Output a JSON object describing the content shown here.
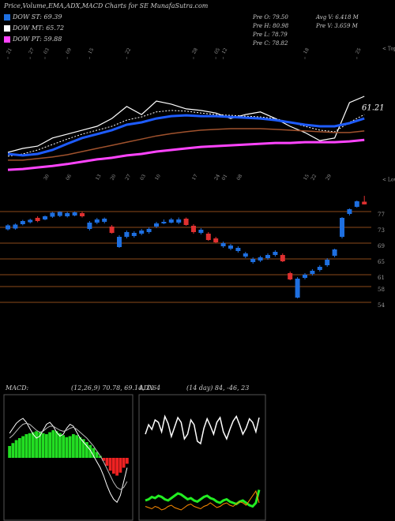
{
  "header": {
    "title": "Price,Volume,EMA,ADX,MACD Charts for SE MunafaSutra.com",
    "legend": [
      {
        "text": "DOW ST: 69.39",
        "color": "#1e6fe0"
      },
      {
        "text": "DOW MT: 65.72",
        "color": "#ffffff"
      },
      {
        "text": "DOW PT: 59.88",
        "color": "#ff44ff"
      }
    ],
    "info": [
      "Pre O: 79.50",
      "Pre H: 80.98",
      "Pre L: 78.79",
      "Pre C: 78.82",
      "Avg V: 6.418  M",
      "Pre V: 3.659 M"
    ]
  },
  "chart_data": [
    {
      "type": "line",
      "annotation": "< Tops",
      "value_label": "61.21",
      "x": [
        0,
        2,
        4,
        6,
        8,
        10,
        12,
        14,
        16,
        18,
        20,
        22,
        24,
        26,
        28,
        30,
        32,
        34,
        36,
        38,
        40,
        42,
        44,
        46,
        48
      ],
      "xlim": [
        -1,
        49
      ],
      "xticks": [
        {
          "value": 0,
          "label": "21"
        },
        {
          "value": 3,
          "label": "27"
        },
        {
          "value": 5,
          "label": "03"
        },
        {
          "value": 8,
          "label": "09"
        },
        {
          "value": 11,
          "label": "15"
        },
        {
          "value": 16,
          "label": "22"
        },
        {
          "value": 25,
          "label": "28"
        },
        {
          "value": 28,
          "label": "05"
        },
        {
          "value": 29,
          "label": "12"
        },
        {
          "value": 40,
          "label": "18"
        },
        {
          "value": 47,
          "label": "25"
        }
      ],
      "ylim": [
        40,
        90
      ],
      "series": [
        {
          "name": "Price",
          "color": "#ffffff",
          "width": 1.2,
          "dash": false,
          "values": [
            49.7,
            51.2,
            52.1,
            55.2,
            56.7,
            58.2,
            59.7,
            62.7,
            67.3,
            64.2,
            69.4,
            68.2,
            66.4,
            65.8,
            64.8,
            62.7,
            64.2,
            65.2,
            62.7,
            59.7,
            57.3,
            54.2,
            55.2,
            68.8,
            71.2
          ]
        },
        {
          "name": "EMA short",
          "color": "#ffffff",
          "width": 1,
          "dash": true,
          "values": [
            48.2,
            49.1,
            50.6,
            52.7,
            54.8,
            56.7,
            58.2,
            59.7,
            62.1,
            63.3,
            65.2,
            65.8,
            65.5,
            64.8,
            64.2,
            63.9,
            63.6,
            63.3,
            62.7,
            61.2,
            59.7,
            58.2,
            57.6,
            61.2,
            64.2
          ]
        },
        {
          "name": "EMA ST",
          "color": "#1e5cff",
          "width": 3,
          "dash": false,
          "values": [
            49.1,
            48.5,
            49.1,
            50.6,
            53,
            55.2,
            56.7,
            58.2,
            60.3,
            61.2,
            62.7,
            63.6,
            63.9,
            63.6,
            63.6,
            63.3,
            63,
            62.7,
            62.1,
            61.2,
            60.3,
            59.7,
            59.7,
            60.9,
            62.7
          ]
        },
        {
          "name": "EMA MT",
          "color": "#a0522d",
          "width": 1.5,
          "dash": false,
          "values": [
            46.7,
            46.7,
            47.3,
            47.9,
            48.8,
            50,
            51.2,
            52.4,
            53.6,
            54.8,
            56,
            56.9,
            57.6,
            58.2,
            58.5,
            58.8,
            58.8,
            58.8,
            58.5,
            58.2,
            57.9,
            57.6,
            57.3,
            57.3,
            57.9
          ]
        },
        {
          "name": "EMA PT",
          "color": "#ff44ff",
          "width": 3,
          "dash": false,
          "values": [
            43,
            43.3,
            43.9,
            44.5,
            45.2,
            46.1,
            47,
            47.6,
            48.5,
            49.1,
            50,
            50.6,
            51.2,
            51.8,
            52.1,
            52.4,
            52.7,
            53,
            53.3,
            53.3,
            53.6,
            53.6,
            53.6,
            53.9,
            54.5
          ]
        }
      ]
    },
    {
      "type": "candlestick",
      "annotation": "< Lows",
      "up_color": "#1e6fe0",
      "down_color": "#e03030",
      "grid_color": "#8b4a1a",
      "xlim": [
        -1,
        49
      ],
      "xticks": [
        {
          "value": 5,
          "label": "30"
        },
        {
          "value": 8,
          "label": "06"
        },
        {
          "value": 12,
          "label": "13"
        },
        {
          "value": 14,
          "label": "20"
        },
        {
          "value": 16,
          "label": "27"
        },
        {
          "value": 18,
          "label": "03"
        },
        {
          "value": 20,
          "label": "10"
        },
        {
          "value": 25,
          "label": "17"
        },
        {
          "value": 28,
          "label": "24"
        },
        {
          "value": 29,
          "label": "01"
        },
        {
          "value": 31,
          "label": "08"
        },
        {
          "value": 40,
          "label": "15"
        },
        {
          "value": 41,
          "label": "22"
        },
        {
          "value": 43,
          "label": "29"
        }
      ],
      "ylim": [
        48.6,
        80.6
      ],
      "yticks": [
        77,
        73,
        69,
        65,
        61,
        58,
        54
      ],
      "open": [
        72.5,
        72.7,
        73.8,
        74.3,
        75.4,
        75,
        75.7,
        75.9,
        75.8,
        76,
        76.6,
        72.6,
        74.2,
        74.4,
        73.2,
        68,
        70.6,
        70.8,
        71.4,
        71.8,
        73.2,
        74,
        74.2,
        74.2,
        75.2,
        73.4,
        71.6,
        71.4,
        70.2,
        68.2,
        67.6,
        67,
        65.6,
        64.2,
        64.6,
        65.2,
        66,
        66,
        61.4,
        55.2,
        60.2,
        61.2,
        62.2,
        63.4,
        65.8,
        70.6,
        76.4,
        78.2,
        79.5
      ],
      "high": [
        73.8,
        74,
        74.9,
        75.2,
        75.8,
        76,
        76.9,
        77.1,
        76.9,
        77,
        77,
        74.6,
        75.4,
        75.5,
        73.6,
        71,
        72.2,
        72,
        72.6,
        73,
        74.4,
        75,
        75.4,
        75.5,
        75.5,
        73.8,
        72.8,
        71.8,
        70.6,
        69.4,
        68.8,
        68.2,
        66.8,
        65.4,
        65.8,
        66.4,
        67.2,
        66.4,
        61.8,
        60.4,
        61.4,
        62.4,
        63.4,
        65.2,
        67.6,
        75.6,
        77.8,
        79.8,
        80.98
      ],
      "low": [
        72.2,
        72.4,
        73.5,
        74,
        74.3,
        74.8,
        75.4,
        75.6,
        75.5,
        75.8,
        75.5,
        72.2,
        73.8,
        74,
        71.4,
        67.8,
        70.2,
        70.4,
        71,
        71.4,
        72.8,
        73.8,
        74,
        73.8,
        73.4,
        71.4,
        71.2,
        69.6,
        69,
        67.8,
        67.2,
        66.6,
        65.2,
        63.8,
        64.2,
        64.8,
        65.6,
        64.2,
        59.6,
        55,
        59.8,
        60.8,
        61.8,
        63,
        65.4,
        70.2,
        76,
        78,
        78.79
      ],
      "close": [
        73.5,
        73.7,
        74.6,
        74.9,
        74.6,
        75.8,
        76.7,
        76.9,
        76.6,
        76.8,
        75.8,
        74.2,
        75,
        75.2,
        71.6,
        70.6,
        71.8,
        71.6,
        72.2,
        72.6,
        74,
        74.4,
        75,
        75,
        73.6,
        71.8,
        72.4,
        69.8,
        69.2,
        69,
        68.4,
        67.8,
        66.4,
        65,
        65.4,
        66,
        66.8,
        64.4,
        59.8,
        60,
        61,
        62,
        63,
        64.8,
        67.4,
        75.4,
        77.6,
        79.6,
        78.82
      ]
    },
    {
      "type": "macd",
      "title": "MACD:",
      "subtitle": "(12,26,9) 70.78, 69.14, 1.64",
      "ylim": [
        -6,
        6
      ],
      "up_color": "#22dd22",
      "down_color": "#ee2222",
      "histogram": [
        1.2,
        1.5,
        1.8,
        2.0,
        2.2,
        2.4,
        2.5,
        2.6,
        2.7,
        2.6,
        2.5,
        2.4,
        2.6,
        2.8,
        2.7,
        2.5,
        2.3,
        2.1,
        2.2,
        2.4,
        2.3,
        2.1,
        1.9,
        1.6,
        1.3,
        1.0,
        0.6,
        0.2,
        -0.3,
        -0.8,
        -1.3,
        -1.6,
        -1.8,
        -1.5,
        -1.0,
        -0.6
      ],
      "series": [
        {
          "name": "MACD",
          "color": "#ffffff",
          "values": [
            2.5,
            3,
            3.5,
            3.8,
            4,
            3.6,
            3,
            2.4,
            2,
            2.2,
            2.8,
            3.4,
            3.6,
            3.2,
            2.6,
            2.2,
            2.4,
            3,
            3.4,
            3.2,
            2.6,
            2,
            1.6,
            1.2,
            0.8,
            0.2,
            -0.4,
            -1,
            -1.8,
            -2.8,
            -3.6,
            -4.2,
            -4.5,
            -3.8,
            -2.4,
            -1
          ]
        },
        {
          "name": "Signal",
          "color": "#bbbbbb",
          "values": [
            2,
            2.3,
            2.7,
            3.1,
            3.4,
            3.5,
            3.4,
            3.1,
            2.8,
            2.6,
            2.7,
            3,
            3.2,
            3.2,
            3,
            2.8,
            2.7,
            2.8,
            3,
            3.1,
            2.9,
            2.6,
            2.3,
            2,
            1.6,
            1.2,
            0.7,
            0.2,
            -0.4,
            -1.1,
            -1.8,
            -2.5,
            -3,
            -3.2,
            -3,
            -2.4
          ]
        }
      ]
    },
    {
      "type": "adx",
      "title": "ADX",
      "subtitle": "(14 day) 84, -46, 23",
      "ylim": [
        0,
        100
      ],
      "series": [
        {
          "name": "ADX",
          "color": "#ffffff",
          "width": 1.5,
          "values": [
            70,
            78,
            74,
            82,
            80,
            72,
            85,
            79,
            68,
            76,
            84,
            80,
            66,
            70,
            82,
            78,
            64,
            62,
            75,
            83,
            77,
            70,
            80,
            84,
            72,
            66,
            74,
            81,
            85,
            78,
            70,
            75,
            83,
            80,
            72,
            84
          ]
        },
        {
          "name": "+DI",
          "color": "#22ee22",
          "width": 3,
          "values": [
            14,
            15,
            17,
            16,
            18,
            17,
            15,
            14,
            16,
            18,
            20,
            19,
            17,
            15,
            16,
            14,
            13,
            15,
            17,
            18,
            16,
            15,
            13,
            12,
            14,
            15,
            13,
            12,
            11,
            13,
            14,
            12,
            10,
            9,
            12,
            23
          ]
        },
        {
          "name": "-DI",
          "color": "#ff8c00",
          "width": 1,
          "values": [
            9,
            8,
            7,
            9,
            8,
            6,
            7,
            9,
            10,
            8,
            7,
            6,
            8,
            10,
            11,
            9,
            8,
            7,
            9,
            10,
            12,
            10,
            8,
            9,
            11,
            12,
            10,
            9,
            11,
            13,
            12,
            10,
            14,
            18,
            22,
            12
          ]
        }
      ]
    }
  ]
}
